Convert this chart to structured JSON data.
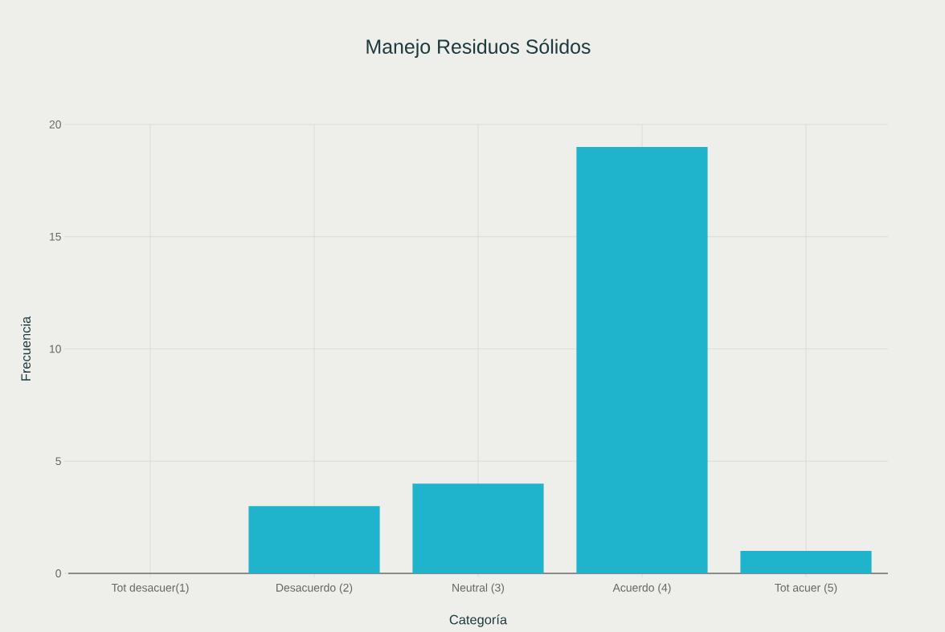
{
  "chart_data": {
    "type": "bar",
    "title": "Manejo Residuos Sólidos",
    "xlabel": "Categoría",
    "ylabel": "Frecuencia",
    "categories": [
      "Tot desacuer(1)",
      "Desacuerdo (2)",
      "Neutral (3)",
      "Acuerdo (4)",
      "Tot acuer (5)"
    ],
    "values": [
      0,
      3,
      4,
      19,
      1
    ],
    "color": "#1fb4cc",
    "ylim": [
      0,
      20
    ],
    "yticks": [
      0,
      5,
      10,
      15,
      20
    ],
    "grid": true
  }
}
